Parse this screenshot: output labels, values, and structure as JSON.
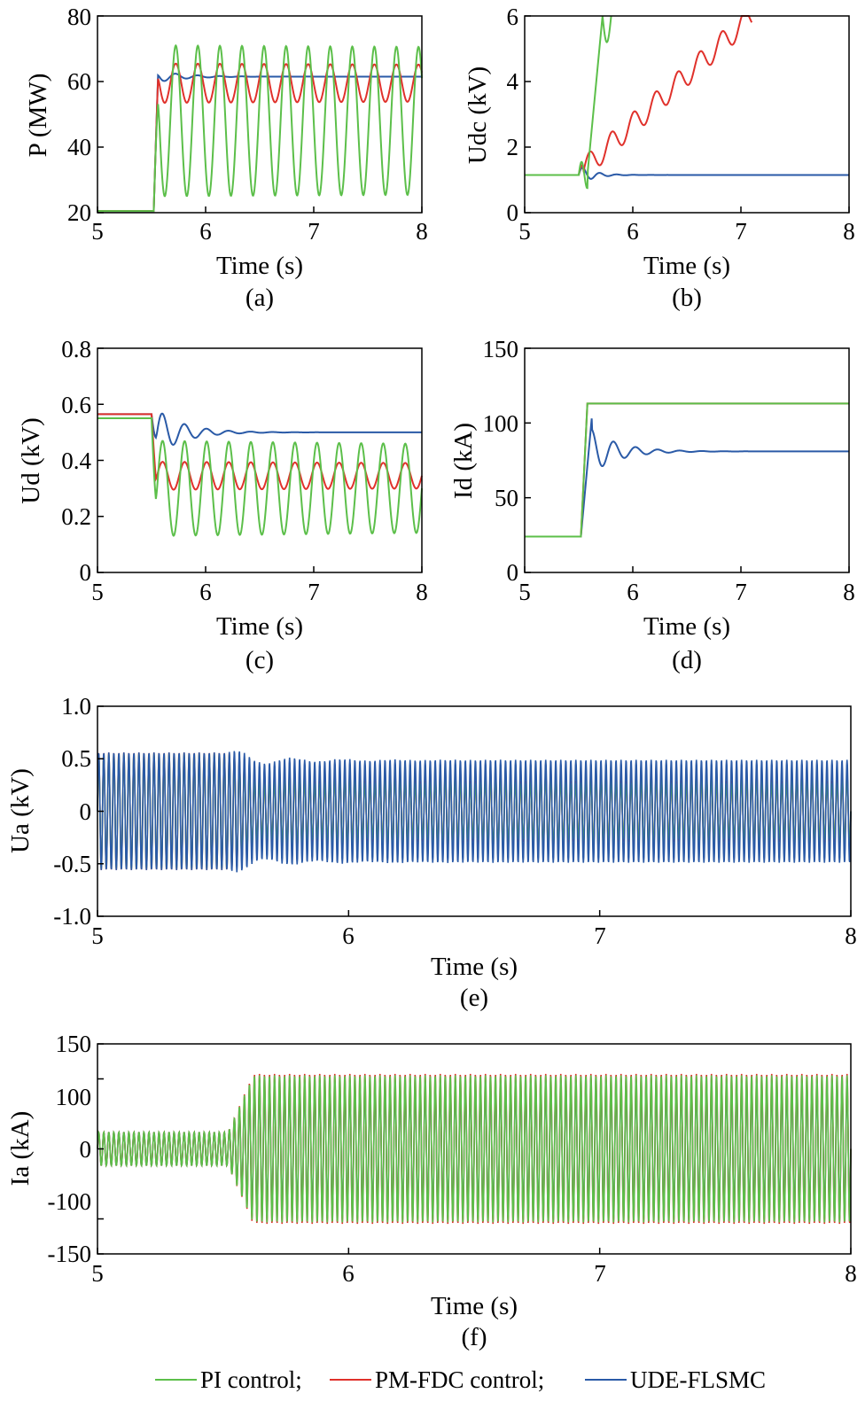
{
  "legend": [
    {
      "label": "PI control;",
      "color": "#5cbf4a"
    },
    {
      "label": "PM-FDC control;",
      "color": "#e0312b"
    },
    {
      "label": "UDE-FLSMC",
      "color": "#2a5aa7"
    }
  ],
  "chart_data": [
    {
      "id": "a",
      "type": "line",
      "caption": "(a)",
      "xlabel": "Time (s)",
      "ylabel": "P (MW)",
      "xlim": [
        5,
        8
      ],
      "ylim": [
        20,
        80
      ],
      "xticks": [
        "5",
        "6",
        "7",
        "8"
      ],
      "yticks": [
        "20",
        "40",
        "60",
        "80"
      ],
      "series": [
        {
          "name": "PI control",
          "color": "#5cbf4a",
          "pre": 20.5,
          "step_t": 5.52,
          "final": 48,
          "osc_amp0": 23,
          "osc_amp_end": 21,
          "freq": 4.9,
          "decay": 0.1
        },
        {
          "name": "PM-FDC control",
          "color": "#e0312b",
          "pre": 20.5,
          "step_t": 5.52,
          "final": 59.5,
          "osc_amp0": 6,
          "osc_amp_end": 4.5,
          "freq": 4.9,
          "decay": 0.1
        },
        {
          "name": "UDE-FLSMC",
          "color": "#2a5aa7",
          "pre": 20.5,
          "step_t": 5.52,
          "final": 61.5,
          "osc_amp0": 2,
          "osc_amp_end": 0,
          "freq": 4.9,
          "decay": 4
        }
      ]
    },
    {
      "id": "b",
      "type": "line",
      "caption": "(b)",
      "xlabel": "Time (s)",
      "ylabel": "Udc (kV)",
      "xlim": [
        5,
        8
      ],
      "ylim": [
        0,
        6
      ],
      "xticks": [
        "5",
        "6",
        "7",
        "8"
      ],
      "yticks": [
        "0",
        "2",
        "4",
        "6"
      ],
      "series": [
        {
          "name": "PI control",
          "color": "#5cbf4a",
          "pre": 1.15,
          "end_t": 5.8,
          "end_value": 6
        },
        {
          "name": "PM-FDC control",
          "color": "#e0312b",
          "pre": 1.15,
          "end_t": 7.1,
          "end_value": 6
        },
        {
          "name": "UDE-FLSMC",
          "color": "#2a5aa7",
          "pre": 1.15,
          "final": 1.15
        }
      ]
    },
    {
      "id": "c",
      "type": "line",
      "caption": "(c)",
      "xlabel": "Time (s)",
      "ylabel": "Ud (kV)",
      "xlim": [
        5,
        8
      ],
      "ylim": [
        0,
        0.8
      ],
      "xticks": [
        "5",
        "6",
        "7",
        "8"
      ],
      "yticks": [
        "0",
        "0.2",
        "0.4",
        "0.6",
        "0.8"
      ],
      "series": [
        {
          "name": "PI control",
          "color": "#5cbf4a",
          "pre": 0.55,
          "step_t": 5.5,
          "final": 0.3,
          "osc_amp0": 0.17,
          "osc_amp_end": 0.12,
          "freq": 4.9,
          "decay": 0.1
        },
        {
          "name": "PM-FDC control",
          "color": "#e0312b",
          "pre": 0.565,
          "step_t": 5.5,
          "final": 0.345,
          "osc_amp0": 0.05,
          "osc_amp_end": 0.03,
          "freq": 4.9,
          "decay": 0.1
        },
        {
          "name": "UDE-FLSMC",
          "color": "#2a5aa7",
          "pre": 0.565,
          "step_t": 5.5,
          "final": 0.5,
          "osc_amp0": 0.1,
          "osc_amp_end": 0,
          "freq": 4.9,
          "decay": 4
        }
      ]
    },
    {
      "id": "d",
      "type": "line",
      "caption": "(d)",
      "xlabel": "Time (s)",
      "ylabel": "Id (kA)",
      "xlim": [
        5,
        8
      ],
      "ylim": [
        0,
        150
      ],
      "xticks": [
        "5",
        "6",
        "7",
        "8"
      ],
      "yticks": [
        "0",
        "50",
        "100",
        "150"
      ],
      "series": [
        {
          "name": "PI control",
          "color": "#5cbf4a",
          "pre": 24,
          "step_t": 5.52,
          "final": 113
        },
        {
          "name": "PM-FDC control",
          "color": "#e0312b",
          "pre": 24,
          "step_t": 5.52,
          "final": 113
        },
        {
          "name": "UDE-FLSMC",
          "color": "#2a5aa7",
          "pre": 24,
          "step_t": 5.52,
          "final": 81,
          "peak": 103
        }
      ]
    },
    {
      "id": "e",
      "type": "line",
      "caption": "(e)",
      "xlabel": "Time (s)",
      "ylabel": "Ua (kV)",
      "xlim": [
        5,
        8
      ],
      "ylim": [
        -1.0,
        1.0
      ],
      "xticks": [
        "5",
        "6",
        "7",
        "8"
      ],
      "yticks": [
        "-1.0",
        "-0.5",
        "0",
        "0.5",
        "1.0"
      ],
      "series": [
        {
          "name": "UDE-FLSMC",
          "color": "#2a5aa7",
          "pre_amp": 0.56,
          "final_amp": 0.49,
          "freq": 50
        },
        {
          "name": "PI control",
          "color": "#5cbf4a",
          "pre_amp": 0.55,
          "final_amp": 0.3,
          "freq": 50
        },
        {
          "name": "PM-FDC control",
          "color": "#e0312b",
          "pre_amp": 0.56,
          "final_amp": 0.33,
          "freq": 50
        }
      ]
    },
    {
      "id": "f",
      "type": "line",
      "caption": "(f)",
      "xlabel": "Time (s)",
      "ylabel": "Ia (kA)",
      "xlim": [
        5,
        8
      ],
      "ylim": [
        -150,
        150
      ],
      "xticks": [
        "5",
        "6",
        "7",
        "8"
      ],
      "yticks": [
        "-150",
        "-100",
        "0",
        "100",
        "150"
      ],
      "series": [
        {
          "name": "PI control",
          "color": "#5cbf4a",
          "pre_amp": 24,
          "final_amp": 105,
          "freq": 50
        },
        {
          "name": "PM-FDC control",
          "color": "#e0312b",
          "pre_amp": 24,
          "final_amp": 107,
          "freq": 50
        },
        {
          "name": "UDE-FLSMC",
          "color": "#2a5aa7",
          "pre_amp": 24,
          "final_amp": 88,
          "freq": 50
        }
      ]
    }
  ]
}
